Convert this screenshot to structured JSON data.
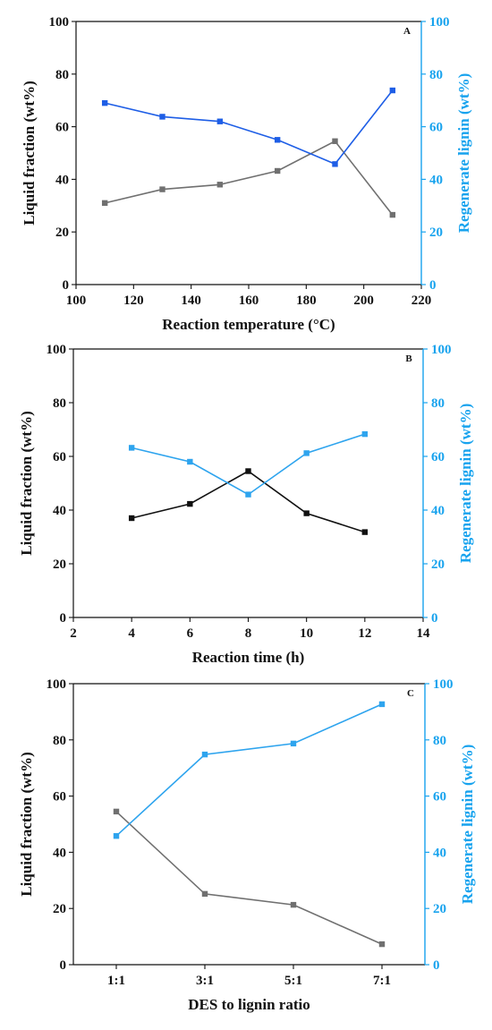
{
  "chart_data": [
    {
      "type": "line",
      "panel_label": "A",
      "xlabel": "Reaction temperature (°C)",
      "ylabel": "Liquid fraction (wt%)",
      "y2label": "Regenerate lignin (wt%)",
      "xlim": [
        100,
        220
      ],
      "ylim": [
        0,
        100
      ],
      "y2lim": [
        0,
        100
      ],
      "x_ticks": [
        100,
        120,
        140,
        160,
        180,
        200,
        220
      ],
      "y_ticks": [
        0,
        20,
        40,
        60,
        80,
        100
      ],
      "y2_ticks": [
        0,
        20,
        40,
        60,
        80,
        100
      ],
      "x": [
        110,
        130,
        150,
        170,
        190,
        210
      ],
      "series": [
        {
          "axis": "left",
          "color": "#707070",
          "values": [
            31,
            36.2,
            38,
            43.2,
            54.5,
            26.5
          ]
        },
        {
          "axis": "right",
          "color": "#1e5ee6",
          "values": [
            69,
            63.8,
            62,
            55,
            45.8,
            73.8
          ]
        }
      ],
      "right_axis_color": "#18a3ee",
      "grid": false
    },
    {
      "type": "line",
      "panel_label": "B",
      "xlabel": "Reaction time (h)",
      "ylabel": "Liquid fraction (wt%)",
      "y2label": "Regenerate lignin (wt%)",
      "xlim": [
        2,
        14
      ],
      "ylim": [
        0,
        100
      ],
      "y2lim": [
        0,
        100
      ],
      "x_ticks": [
        2,
        4,
        6,
        8,
        10,
        12,
        14
      ],
      "y_ticks": [
        0,
        20,
        40,
        60,
        80,
        100
      ],
      "y2_ticks": [
        0,
        20,
        40,
        60,
        80,
        100
      ],
      "x": [
        4,
        6,
        8,
        10,
        12
      ],
      "series": [
        {
          "axis": "left",
          "color": "#111111",
          "values": [
            37,
            42.3,
            54.5,
            38.8,
            31.8
          ]
        },
        {
          "axis": "right",
          "color": "#2ea4ee",
          "values": [
            63.2,
            58,
            45.8,
            61.2,
            68.3
          ]
        }
      ],
      "right_axis_color": "#18a3ee",
      "grid": false
    },
    {
      "type": "line",
      "panel_label": "C",
      "xlabel": "DES to lignin ratio",
      "ylabel": "Liquid fraction (wt%)",
      "y2label": "Regenerate lignin (wt%)",
      "categories": [
        "1:1",
        "3:1",
        "5:1",
        "7:1"
      ],
      "ylim": [
        0,
        100
      ],
      "y2lim": [
        0,
        100
      ],
      "y_ticks": [
        0,
        20,
        40,
        60,
        80,
        100
      ],
      "y2_ticks": [
        0,
        20,
        40,
        60,
        80,
        100
      ],
      "series": [
        {
          "axis": "left",
          "color": "#707070",
          "values": [
            54.5,
            25.2,
            21.3,
            7.3
          ]
        },
        {
          "axis": "right",
          "color": "#2ea4ee",
          "values": [
            45.8,
            74.8,
            78.7,
            92.7
          ]
        }
      ],
      "right_axis_color": "#18a3ee",
      "grid": false
    }
  ]
}
